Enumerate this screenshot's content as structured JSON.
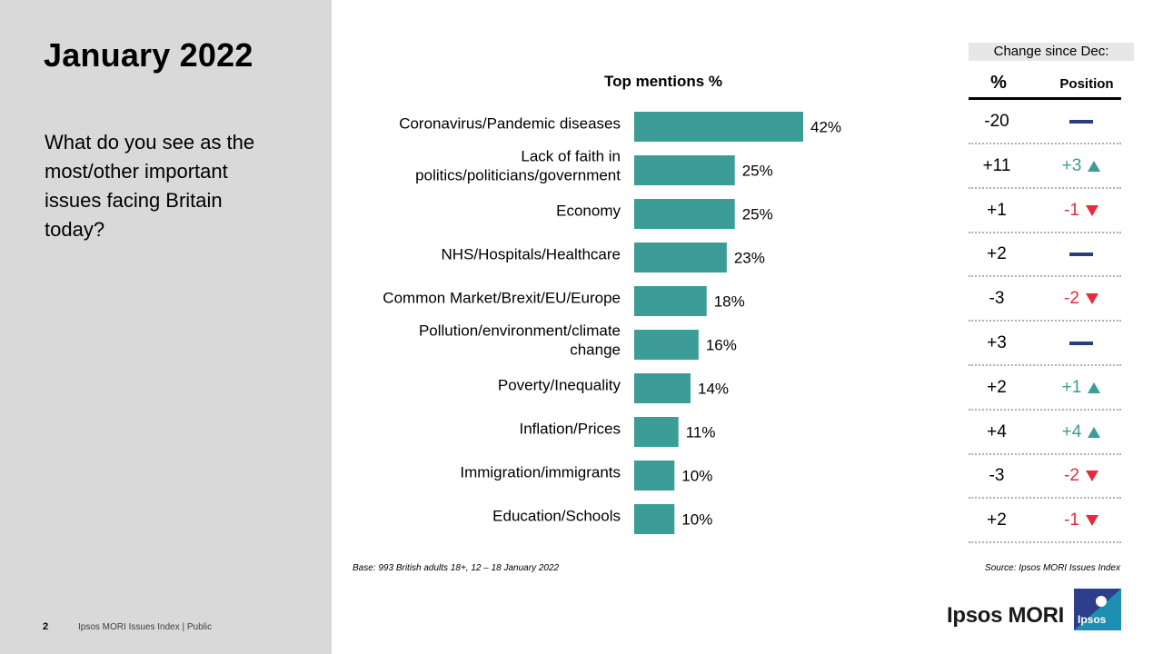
{
  "slide": {
    "title": "January 2022",
    "question": "What do you see as the most/other important issues facing Britain today?",
    "page_number": "2",
    "footer": "Ipsos MORI Issues Index | Public"
  },
  "notes": {
    "base": "Base: 993 British adults 18+, 12 – 18 January 2022",
    "source": "Source: Ipsos MORI Issues Index"
  },
  "change_table": {
    "header": "Change since Dec:",
    "col_pct": "%",
    "col_position": "Position",
    "rows": [
      {
        "pct": "-20",
        "position": "",
        "dir": "none"
      },
      {
        "pct": "+11",
        "position": "+3",
        "dir": "up"
      },
      {
        "pct": "+1",
        "position": "-1",
        "dir": "down"
      },
      {
        "pct": "+2",
        "position": "",
        "dir": "none"
      },
      {
        "pct": "-3",
        "position": "-2",
        "dir": "down"
      },
      {
        "pct": "+3",
        "position": "",
        "dir": "none"
      },
      {
        "pct": "+2",
        "position": "+1",
        "dir": "up"
      },
      {
        "pct": "+4",
        "position": "+4",
        "dir": "up"
      },
      {
        "pct": "-3",
        "position": "-2",
        "dir": "down"
      },
      {
        "pct": "+2",
        "position": "-1",
        "dir": "down"
      }
    ]
  },
  "brand": {
    "name": "Ipsos MORI",
    "logo_text": "Ipsos",
    "colors": {
      "bar": "#3c9d98",
      "up": "#3c9d98",
      "down": "#e42c3b",
      "unchanged": "#2c3e7a",
      "logo": "#1d8fb0"
    }
  },
  "chart_data": {
    "type": "bar",
    "orientation": "horizontal",
    "title": "Top mentions %",
    "categories": [
      [
        "Coronavirus/Pandemic diseases"
      ],
      [
        "Lack of faith in",
        "politics/politicians/government"
      ],
      [
        "Economy"
      ],
      [
        "NHS/Hospitals/Healthcare"
      ],
      [
        "Common Market/Brexit/EU/Europe"
      ],
      [
        "Pollution/environment/climate",
        "change"
      ],
      [
        "Poverty/Inequality"
      ],
      [
        "Inflation/Prices"
      ],
      [
        "Immigration/immigrants"
      ],
      [
        "Education/Schools"
      ]
    ],
    "values": [
      42,
      25,
      25,
      23,
      18,
      16,
      14,
      11,
      10,
      10
    ],
    "value_labels": [
      "42%",
      "25%",
      "25%",
      "23%",
      "18%",
      "16%",
      "14%",
      "11%",
      "10%",
      "10%"
    ],
    "xlim": [
      0,
      42
    ],
    "grid": false,
    "legend": "none"
  }
}
